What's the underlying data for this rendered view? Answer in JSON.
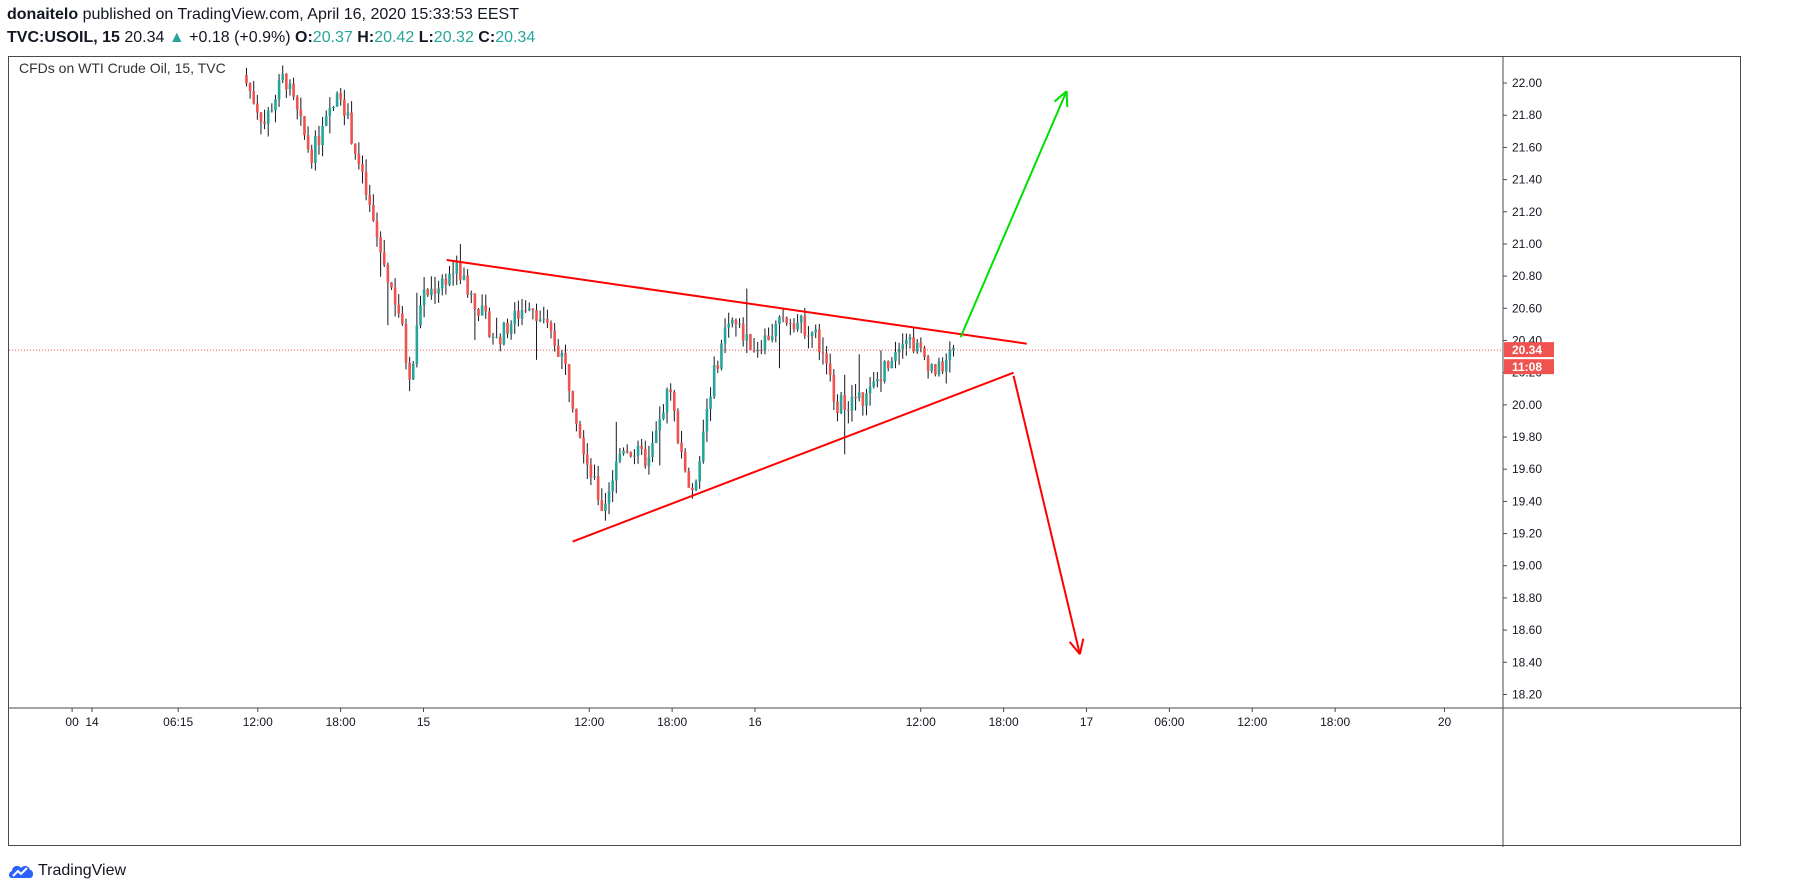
{
  "header": {
    "author": "donaitelo",
    "published_text": "published on TradingView.com, April 16, 2020 15:33:53 EEST",
    "symbol": "TVC:USOIL, 15",
    "last": "20.34",
    "change_arrow": "▲",
    "change": "+0.18 (+0.9%)",
    "o_label": "O:",
    "o_value": "20.37",
    "h_label": "H:",
    "h_value": "20.42",
    "l_label": "L:",
    "l_value": "20.32",
    "c_label": "C:",
    "c_value": "20.34"
  },
  "footer": {
    "brand": "TradingView"
  },
  "colors": {
    "up": "#26a69a",
    "up_body": "#a5d6a7",
    "down": "#ef5350",
    "wick": "#131722",
    "trendline": "#ff0000",
    "arrow_up": "#00e000",
    "arrow_down": "#ff0000",
    "price_tag": "#ef5350"
  },
  "chart_data": {
    "type": "candlestick",
    "title": "CFDs on WTI Crude Oil, 15, TVC",
    "ylim": [
      18.05,
      22.25
    ],
    "y_ticks": [
      "22.00",
      "21.80",
      "21.60",
      "21.40",
      "21.20",
      "21.00",
      "20.80",
      "20.60",
      "20.40",
      "20.20",
      "20.00",
      "19.80",
      "19.60",
      "19.40",
      "19.20",
      "19.00",
      "18.80",
      "18.60",
      "18.40",
      "18.20"
    ],
    "x_ticks": [
      {
        "t": -0.06,
        "label": "00"
      },
      {
        "t": 0.0,
        "label": "14"
      },
      {
        "t": 0.26,
        "label": "06:15"
      },
      {
        "t": 0.5,
        "label": "12:00"
      },
      {
        "t": 0.75,
        "label": "18:00"
      },
      {
        "t": 1.0,
        "label": "15"
      },
      {
        "t": 1.5,
        "label": "12:00"
      },
      {
        "t": 1.75,
        "label": "18:00"
      },
      {
        "t": 2.0,
        "label": "16"
      },
      {
        "t": 2.5,
        "label": "12:00"
      },
      {
        "t": 2.75,
        "label": "18:00"
      },
      {
        "t": 3.0,
        "label": "17"
      },
      {
        "t": 3.25,
        "label": "06:00"
      },
      {
        "t": 3.5,
        "label": "12:00"
      },
      {
        "t": 3.75,
        "label": "18:00"
      },
      {
        "t": 4.08,
        "label": "20"
      }
    ],
    "last_price": "20.34",
    "countdown": "11:08",
    "price_path": [
      [
        0.455,
        22.05
      ],
      [
        0.52,
        21.75
      ],
      [
        0.58,
        22.05
      ],
      [
        0.66,
        21.55
      ],
      [
        0.75,
        21.95
      ],
      [
        0.87,
        20.95
      ],
      [
        0.93,
        20.55
      ],
      [
        0.96,
        20.1
      ],
      [
        0.99,
        20.65
      ],
      [
        1.1,
        20.85
      ],
      [
        1.22,
        20.4
      ],
      [
        1.32,
        20.65
      ],
      [
        1.42,
        20.3
      ],
      [
        1.5,
        19.6
      ],
      [
        1.54,
        19.35
      ],
      [
        1.6,
        19.75
      ],
      [
        1.68,
        19.65
      ],
      [
        1.74,
        20.1
      ],
      [
        1.81,
        19.4
      ],
      [
        1.86,
        20.05
      ],
      [
        1.92,
        20.55
      ],
      [
        2.0,
        20.35
      ],
      [
        2.1,
        20.55
      ],
      [
        2.18,
        20.45
      ],
      [
        2.25,
        20.0
      ],
      [
        2.34,
        20.05
      ],
      [
        2.45,
        20.45
      ],
      [
        2.55,
        20.2
      ],
      [
        2.6,
        20.34
      ]
    ],
    "trendlines": [
      {
        "from": [
          1.07,
          20.9
        ],
        "to": [
          2.82,
          20.38
        ]
      },
      {
        "from": [
          1.45,
          19.15
        ],
        "to": [
          2.78,
          20.2
        ]
      }
    ],
    "scenario_arrows": [
      {
        "direction": "up",
        "from": [
          2.62,
          20.42
        ],
        "to": [
          2.94,
          21.95
        ]
      },
      {
        "direction": "down",
        "from": [
          2.78,
          20.18
        ],
        "to": [
          2.98,
          18.45
        ]
      }
    ]
  }
}
